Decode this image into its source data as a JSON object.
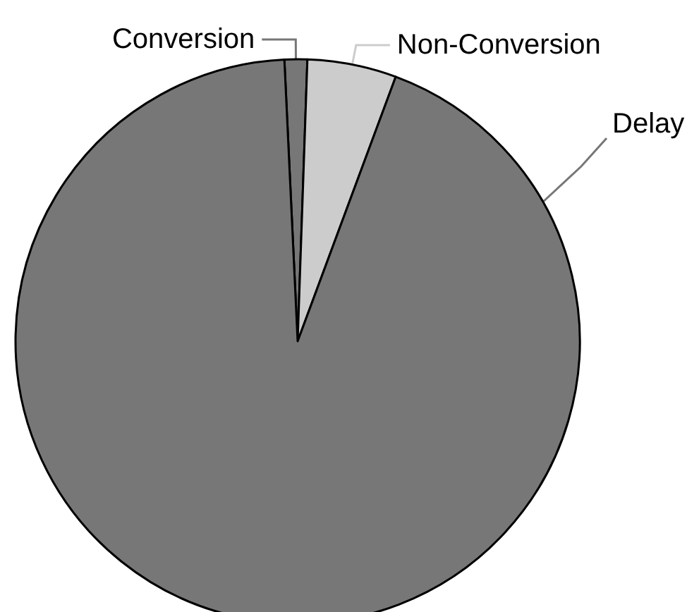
{
  "chart_data": {
    "type": "pie",
    "categories": [
      "Conversion",
      "Non-Conversion",
      "Delay"
    ],
    "values": [
      1.3,
      5.1,
      93.6
    ],
    "colors": [
      "#777777",
      "#cccccc",
      "#777777"
    ]
  }
}
